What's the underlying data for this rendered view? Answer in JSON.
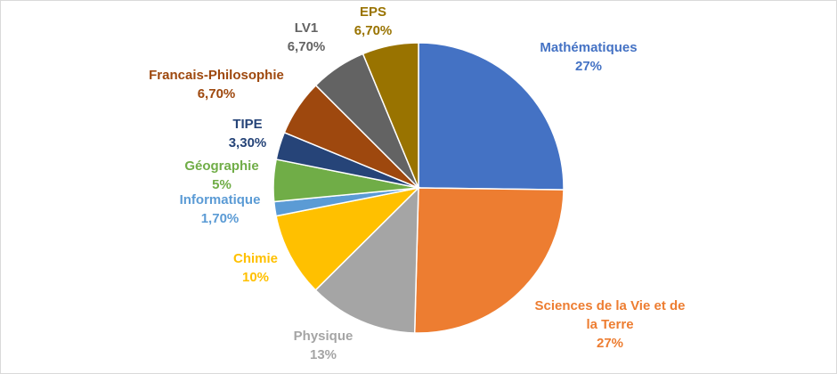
{
  "chart_data": {
    "type": "pie",
    "title": "",
    "legend": "none",
    "slices": [
      {
        "name": "Mathématiques",
        "value": 27,
        "value_label": "27%",
        "color": "#4472C4",
        "name_lines": [
          "Mathématiques"
        ]
      },
      {
        "name": "Sciences de la Vie et de la Terre",
        "value": 27,
        "value_label": "27%",
        "color": "#ED7D31",
        "name_lines": [
          "Sciences de la Vie et de",
          "la Terre"
        ]
      },
      {
        "name": "Physique",
        "value": 13,
        "value_label": "13%",
        "color": "#A5A5A5",
        "name_lines": [
          "Physique"
        ]
      },
      {
        "name": "Chimie",
        "value": 10,
        "value_label": "10%",
        "color": "#FFC000",
        "name_lines": [
          "Chimie"
        ]
      },
      {
        "name": "Informatique",
        "value": 1.7,
        "value_label": "1,70%",
        "color": "#5B9BD5",
        "name_lines": [
          "Informatique"
        ]
      },
      {
        "name": "Géographie",
        "value": 5,
        "value_label": "5%",
        "color": "#70AD47",
        "name_lines": [
          "Géographie"
        ]
      },
      {
        "name": "TIPE",
        "value": 3.3,
        "value_label": "3,30%",
        "color": "#264478",
        "name_lines": [
          "TIPE"
        ]
      },
      {
        "name": "Francais-Philosophie",
        "value": 6.7,
        "value_label": "6,70%",
        "color": "#9E480E",
        "name_lines": [
          "Francais-Philosophie"
        ]
      },
      {
        "name": "LV1",
        "value": 6.7,
        "value_label": "6,70%",
        "color": "#636363",
        "name_lines": [
          "LV1"
        ]
      },
      {
        "name": "EPS",
        "value": 6.7,
        "value_label": "6,70%",
        "color": "#997300",
        "name_lines": [
          "EPS"
        ]
      }
    ],
    "label_colors": {
      "Mathématiques": "#4472C4",
      "Sciences de la Vie et de la Terre": "#ED7D31",
      "Physique": "#A5A5A5",
      "Chimie": "#FFC000",
      "Informatique": "#5B9BD5",
      "Géographie": "#70AD47",
      "TIPE": "#264478",
      "Francais-Philosophie": "#9E480E",
      "LV1": "#636363",
      "EPS": "#997300"
    }
  }
}
